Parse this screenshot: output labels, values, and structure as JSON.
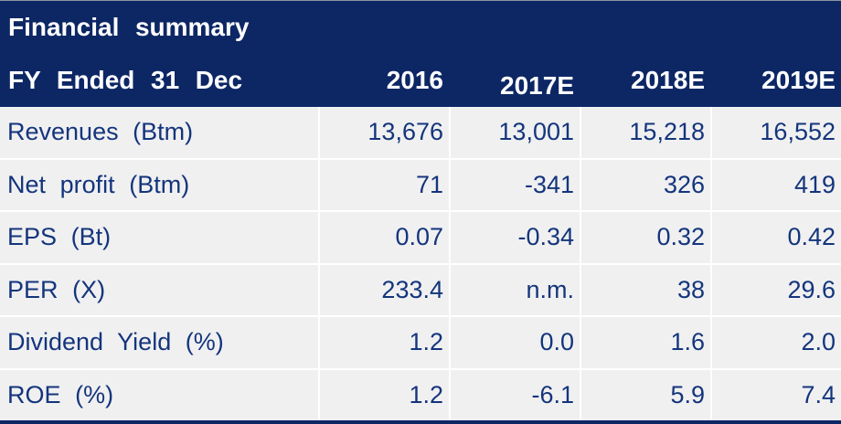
{
  "table": {
    "title": "Financial summary",
    "header_label": "FY Ended 31 Dec",
    "columns": [
      "2016",
      "2017E",
      "2018E",
      "2019E"
    ],
    "rows": [
      {
        "label": "Revenues (Btm)",
        "values": [
          "13,676",
          "13,001",
          "15,218",
          "16,552"
        ]
      },
      {
        "label": "Net profit (Btm)",
        "values": [
          "71",
          "-341",
          "326",
          "419"
        ]
      },
      {
        "label": "EPS (Bt)",
        "values": [
          "0.07",
          "-0.34",
          "0.32",
          "0.42"
        ]
      },
      {
        "label": "PER (X)",
        "values": [
          "233.4",
          "n.m.",
          "38",
          "29.6"
        ]
      },
      {
        "label": "Dividend Yield (%)",
        "values": [
          "1.2",
          "0.0",
          "1.6",
          "2.0"
        ]
      },
      {
        "label": "ROE (%)",
        "values": [
          "1.2",
          "-6.1",
          "5.9",
          "7.4"
        ]
      }
    ],
    "colors": {
      "header_bg": "#0d2765",
      "row_bg": "#f0f0f1",
      "divider": "#ffffff",
      "cell_text": "#14357c",
      "header_text": "#ffffff"
    }
  }
}
